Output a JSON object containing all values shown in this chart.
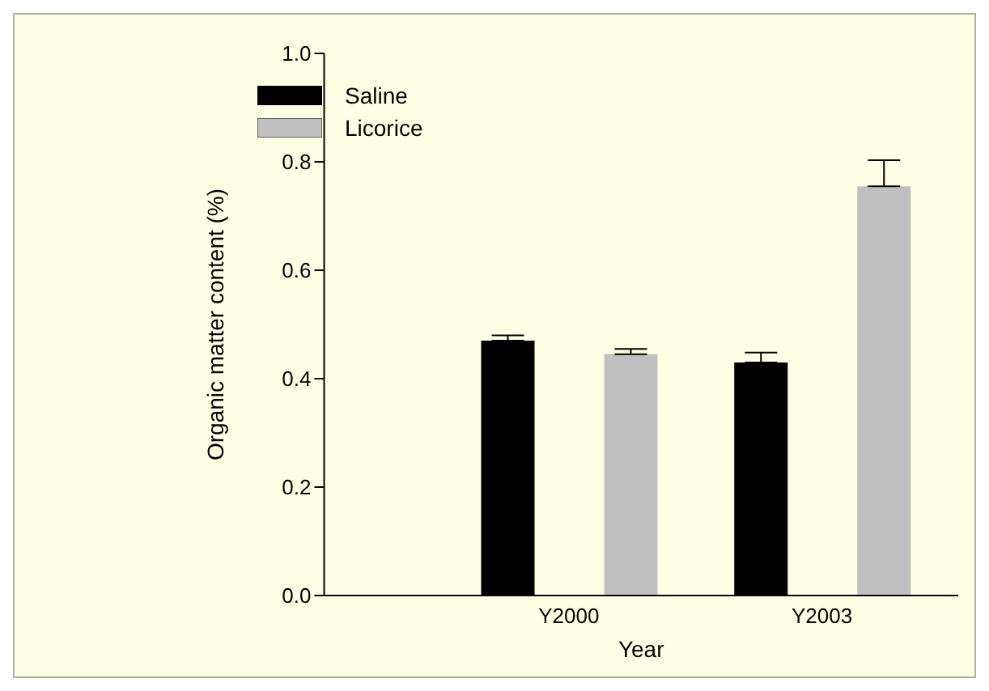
{
  "chart_data": {
    "type": "bar",
    "xlabel": "Year",
    "ylabel": "Organic matter content (%)",
    "categories": [
      "Y2000",
      "Y2003"
    ],
    "series": [
      {
        "name": "Saline",
        "color": "#000000",
        "values": [
          0.47,
          0.43
        ],
        "errors": [
          [
            0.47,
            0.48
          ],
          [
            0.43,
            0.448
          ]
        ]
      },
      {
        "name": "Licorice",
        "color": "#c0c0c0",
        "values": [
          0.445,
          0.755
        ],
        "errors": [
          [
            0.445,
            0.455
          ],
          [
            0.755,
            0.803
          ]
        ]
      }
    ],
    "ylim": [
      0,
      1
    ],
    "yticks": [
      {
        "value": 0,
        "label": "0.0"
      },
      {
        "value": 0.2,
        "label": "0.2"
      },
      {
        "value": 0.4,
        "label": "0.4"
      },
      {
        "value": 0.6,
        "label": "0.6"
      },
      {
        "value": 0.8,
        "label": "0.8"
      },
      {
        "value": 1,
        "label": "1.0"
      }
    ],
    "grid": false,
    "legend": "top left"
  }
}
